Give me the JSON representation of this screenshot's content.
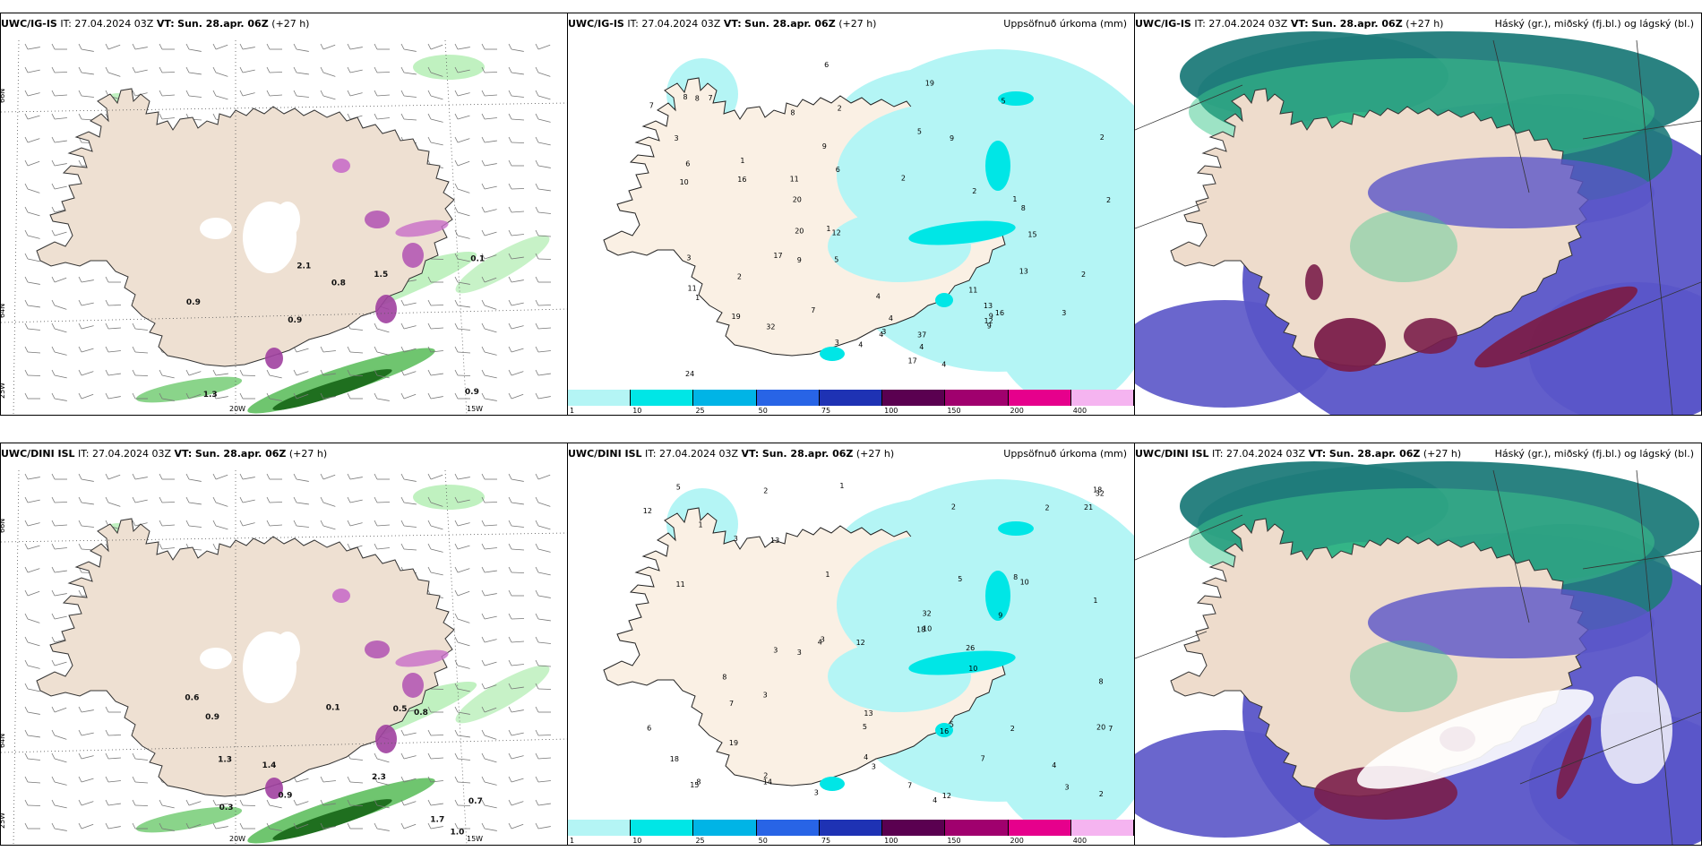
{
  "panels": [
    {
      "id": "top-left",
      "model": "UWC/IG-IS",
      "it": "IT: 27.04.2024 03Z",
      "vt_label": "VT:",
      "vt": "Sun. 28.apr. 06Z",
      "lead": "(+27 h)",
      "right": ""
    },
    {
      "id": "top-mid",
      "model": "UWC/IG-IS",
      "it": "IT: 27.04.2024 03Z",
      "vt_label": "VT:",
      "vt": "Sun. 28.apr. 06Z",
      "lead": "(+27 h)",
      "right": "Uppsöfnuð úrkoma (mm)"
    },
    {
      "id": "top-right",
      "model": "UWC/IG-IS",
      "it": "IT: 27.04.2024 03Z",
      "vt_label": "VT:",
      "vt": "Sun. 28.apr. 06Z",
      "lead": "(+27 h)",
      "right": "Háský (gr.), miðský (fj.bl.) og lágský (bl.)"
    },
    {
      "id": "bot-left",
      "model": "UWC/DINI ISL",
      "it": "IT: 27.04.2024 03Z",
      "vt_label": "VT:",
      "vt": "Sun. 28.apr. 06Z",
      "lead": "(+27 h)",
      "right": ""
    },
    {
      "id": "bot-mid",
      "model": "UWC/DINI ISL",
      "it": "IT: 27.04.2024 03Z",
      "vt_label": "VT:",
      "vt": "Sun. 28.apr. 06Z",
      "lead": "(+27 h)",
      "right": "Uppsöfnuð úrkoma (mm)"
    },
    {
      "id": "bot-right",
      "model": "UWC/DINI ISL",
      "it": "IT: 27.04.2024 03Z",
      "vt_label": "VT:",
      "vt": "Sun. 28.apr. 06Z",
      "lead": "(+27 h)",
      "right": "Háský (gr.), miðský (fj.bl.) og lágský (bl.)"
    }
  ],
  "axis_labels": {
    "lat66": "66N",
    "lat64": "64N",
    "lon25": "25W",
    "lon20": "20W",
    "lon15": "15W"
  },
  "legend": {
    "ticks": [
      "1",
      "10",
      "25",
      "50",
      "75",
      "100",
      "150",
      "200",
      "400"
    ],
    "colors": [
      "#b4f5f5",
      "#00e6e6",
      "#00b4e6",
      "#2864e6",
      "#1e32b4",
      "#5a0050",
      "#a0006e",
      "#e6008c",
      "#f5b4f0"
    ]
  },
  "precip_top": [
    "3",
    "4",
    "2",
    "7",
    "2",
    "1",
    "3",
    "3",
    "1",
    "1",
    "2",
    "3",
    "4",
    "4",
    "5",
    "4",
    "13",
    "9",
    "2",
    "8",
    "7",
    "15",
    "16",
    "20",
    "37",
    "32",
    "19",
    "17",
    "8",
    "11",
    "8",
    "11",
    "13",
    "4",
    "12",
    "9",
    "8",
    "16",
    "12",
    "17",
    "24",
    "19",
    "20",
    "11",
    "10",
    "5",
    "6",
    "5",
    "6",
    "2",
    "4",
    "3",
    "1",
    "2",
    "2",
    "7",
    "9",
    "6",
    "9",
    "9"
  ],
  "precip_bot": [
    "3",
    "4",
    "2",
    "7",
    "2",
    "1",
    "3",
    "3",
    "1",
    "1",
    "2",
    "3",
    "3",
    "5",
    "2",
    "18",
    "11",
    "14",
    "3",
    "12",
    "16",
    "32",
    "32",
    "15",
    "10",
    "8",
    "6",
    "7",
    "5",
    "10",
    "12",
    "12",
    "13",
    "21",
    "19",
    "26",
    "20",
    "18",
    "5",
    "4",
    "10",
    "9",
    "7",
    "8",
    "13",
    "5",
    "8",
    "7",
    "3",
    "4",
    "18",
    "1",
    "2",
    "2",
    "3",
    "8",
    "4"
  ],
  "wind_top": [
    "0.9",
    "0.9",
    "0.1",
    "0.9",
    "1.5",
    "1.3",
    "2.1",
    "0.8"
  ],
  "wind_bot": [
    "1.0",
    "1.3",
    "2.3",
    "0.6",
    "0.7",
    "0.9",
    "0.3",
    "1.4",
    "0.8",
    "0.1",
    "0.5",
    "1.7",
    "0.9"
  ]
}
